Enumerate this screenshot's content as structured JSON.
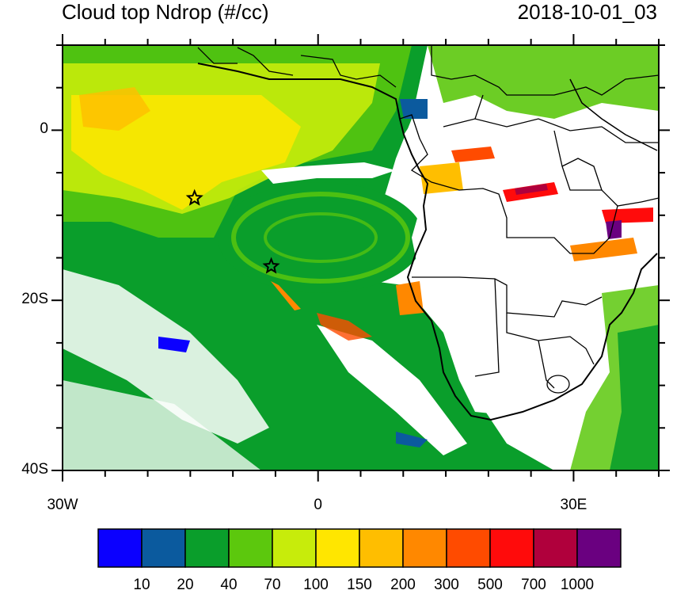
{
  "title_left": "Cloud top Ndrop (#/cc)",
  "title_right": "2018-10-01_03",
  "axes": {
    "x_ticks": [
      {
        "value": -30,
        "label": "30W"
      },
      {
        "value": 0,
        "label": "0"
      },
      {
        "value": 30,
        "label": "30E"
      }
    ],
    "y_ticks": [
      {
        "value": 0,
        "label": "0"
      },
      {
        "value": -20,
        "label": "20S"
      },
      {
        "value": -40,
        "label": "40S"
      }
    ],
    "lon_range": [
      -30,
      40
    ],
    "lat_range": [
      -40,
      10
    ]
  },
  "colorbar": {
    "colors": [
      "#0b00ff",
      "#0b5a9e",
      "#0a9e2b",
      "#5cc80d",
      "#c7ec0b",
      "#ffe600",
      "#ffbe00",
      "#ff8800",
      "#ff4b00",
      "#ff0b0b",
      "#b0003c",
      "#6a0080"
    ],
    "labels": [
      "10",
      "20",
      "40",
      "70",
      "100",
      "150",
      "200",
      "300",
      "500",
      "700",
      "1000"
    ]
  },
  "markers": [
    {
      "name": "star",
      "lon": -14.5,
      "lat": -8
    },
    {
      "name": "star",
      "lon": -5.5,
      "lat": -16
    }
  ]
}
